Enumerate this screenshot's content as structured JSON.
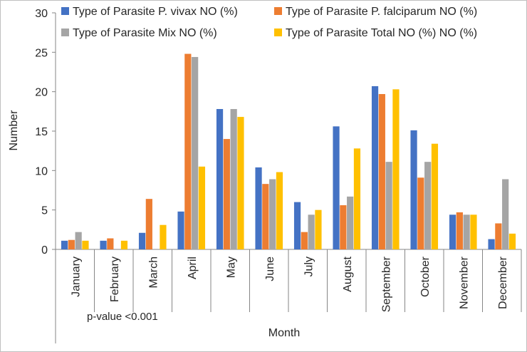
{
  "chart_data": {
    "type": "bar",
    "title": "",
    "xlabel": "Month",
    "ylabel": "Number",
    "ylim": [
      0,
      30
    ],
    "yticks": [
      0,
      5,
      10,
      15,
      20,
      25,
      30
    ],
    "grid": false,
    "legend_position": "top",
    "annotation": "p-value <0.001",
    "categories": [
      "January",
      "February",
      "March",
      "April",
      "May",
      "June",
      "July",
      "August",
      "September",
      "October",
      "November",
      "December"
    ],
    "series": [
      {
        "name": "Type of Parasite P. vivax NO (%)",
        "color": "#4472c4",
        "values": [
          1.1,
          1.1,
          2.1,
          4.8,
          17.8,
          10.4,
          6.0,
          15.6,
          20.7,
          15.1,
          4.4,
          1.3
        ]
      },
      {
        "name": "Type of Parasite P. falciparum NO (%)",
        "color": "#ed7d31",
        "values": [
          1.2,
          1.4,
          6.4,
          24.8,
          14.0,
          8.3,
          2.2,
          5.6,
          19.7,
          9.1,
          4.7,
          3.3
        ]
      },
      {
        "name": "Type of Parasite Mix NO (%)",
        "color": "#a5a5a5",
        "values": [
          2.2,
          0,
          0,
          24.4,
          17.8,
          8.9,
          4.4,
          6.7,
          11.1,
          11.1,
          4.4,
          8.9
        ]
      },
      {
        "name": "Type of Parasite Total NO (%) NO (%)",
        "color": "#ffc000",
        "values": [
          1.1,
          1.1,
          3.1,
          10.5,
          16.8,
          9.8,
          5.0,
          12.8,
          20.3,
          13.4,
          4.4,
          2.0
        ]
      }
    ]
  }
}
